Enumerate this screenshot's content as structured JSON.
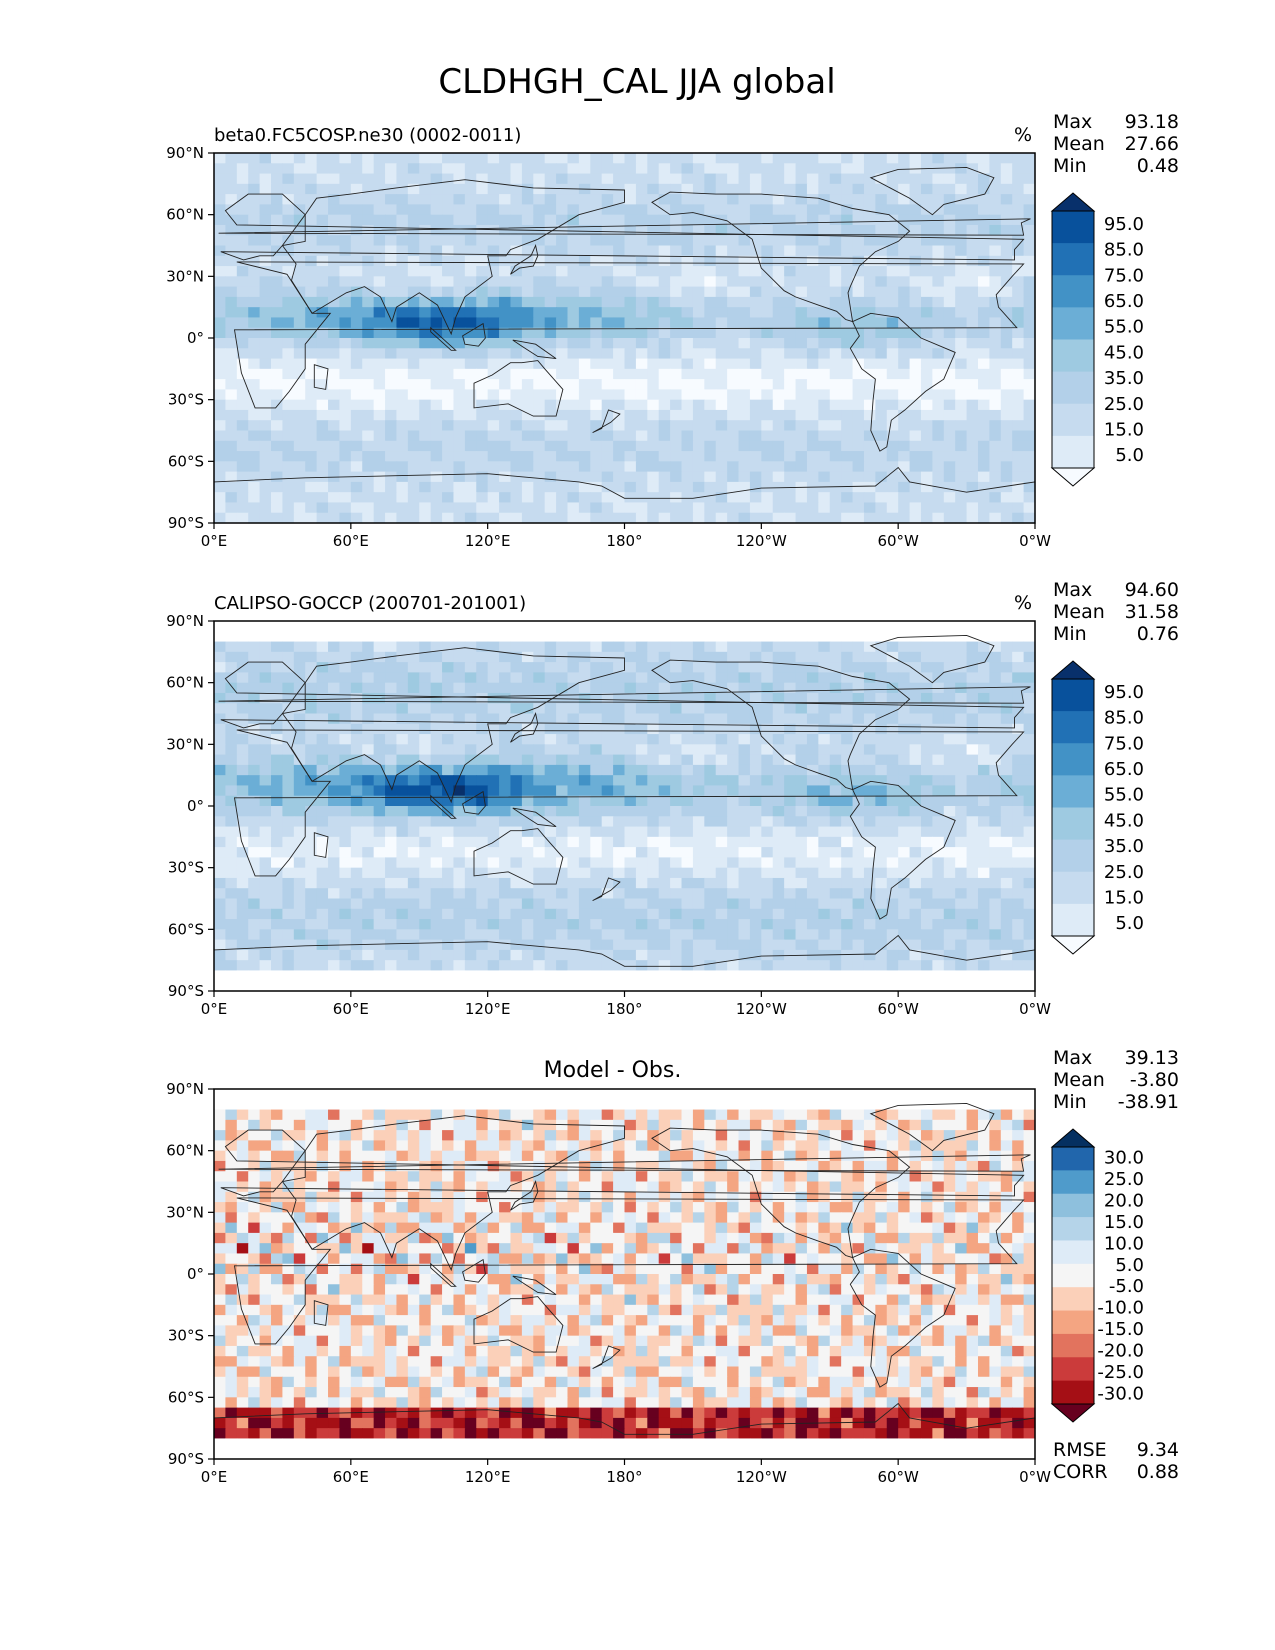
{
  "figure_title": "CLDHGH_CAL JJA global",
  "colors": {
    "blues": [
      "#f7fbff",
      "#deebf7",
      "#c6dbef",
      "#b3d0e9",
      "#9ecae1",
      "#6baed6",
      "#4292c6",
      "#2171b5",
      "#08519c",
      "#08306b"
    ],
    "diverging": [
      "#67001f",
      "#a50f15",
      "#cb3b3b",
      "#e2735e",
      "#f4a582",
      "#fbd0b9",
      "#f5f5f5",
      "#deebf7",
      "#b5d4e9",
      "#8ec0dd",
      "#4f9bcb",
      "#2166ac",
      "#053061"
    ],
    "land_outline": "#222222"
  },
  "chart_data": [
    {
      "type": "heatmap",
      "panel": "model",
      "title_left": "beta0.FC5COSP.ne30 (0002-0011)",
      "units": "%",
      "stats": {
        "max": "93.18",
        "mean": "27.66",
        "min": "0.48"
      },
      "stat_labels": {
        "max": "Max",
        "mean": "Mean",
        "min": "Min"
      },
      "colorbar_levels": [
        "95.0",
        "85.0",
        "75.0",
        "65.0",
        "55.0",
        "45.0",
        "35.0",
        "25.0",
        "15.0",
        "5.0"
      ],
      "xticks": [
        "0°E",
        "60°E",
        "120°E",
        "180°",
        "120°W",
        "60°W",
        "0°W"
      ],
      "yticks": [
        "90°N",
        "60°N",
        "30°N",
        "0°",
        "30°S",
        "60°S",
        "90°S"
      ],
      "x_range": [
        0,
        360
      ],
      "y_range": [
        -90,
        90
      ]
    },
    {
      "type": "heatmap",
      "panel": "observation",
      "title_left": "CALIPSO-GOCCP (200701-201001)",
      "units": "%",
      "stats": {
        "max": "94.60",
        "mean": "31.58",
        "min": "0.76"
      },
      "stat_labels": {
        "max": "Max",
        "mean": "Mean",
        "min": "Min"
      },
      "colorbar_levels": [
        "95.0",
        "85.0",
        "75.0",
        "65.0",
        "55.0",
        "45.0",
        "35.0",
        "25.0",
        "15.0",
        "5.0"
      ],
      "xticks": [
        "0°E",
        "60°E",
        "120°E",
        "180°",
        "120°W",
        "60°W",
        "0°W"
      ],
      "yticks": [
        "90°N",
        "60°N",
        "30°N",
        "0°",
        "30°S",
        "60°S",
        "90°S"
      ],
      "x_range": [
        0,
        360
      ],
      "y_range": [
        -90,
        90
      ]
    },
    {
      "type": "heatmap",
      "panel": "difference",
      "title_center": "Model - Obs.",
      "stats": {
        "max": "39.13",
        "mean": "-3.80",
        "min": "-38.91"
      },
      "stat_labels": {
        "max": "Max",
        "mean": "Mean",
        "min": "Min"
      },
      "colorbar_levels": [
        "30.0",
        "25.0",
        "20.0",
        "15.0",
        "10.0",
        "5.0",
        "-5.0",
        "-10.0",
        "-15.0",
        "-20.0",
        "-25.0",
        "-30.0"
      ],
      "extra_stats": {
        "rmse_label": "RMSE",
        "rmse": "9.34",
        "corr_label": "CORR",
        "corr": "0.88"
      },
      "xticks": [
        "0°E",
        "60°E",
        "120°E",
        "180°",
        "120°W",
        "60°W",
        "0°W"
      ],
      "yticks": [
        "90°N",
        "60°N",
        "30°N",
        "0°",
        "30°S",
        "60°S",
        "90°S"
      ],
      "x_range": [
        0,
        360
      ],
      "y_range": [
        -90,
        90
      ]
    }
  ]
}
